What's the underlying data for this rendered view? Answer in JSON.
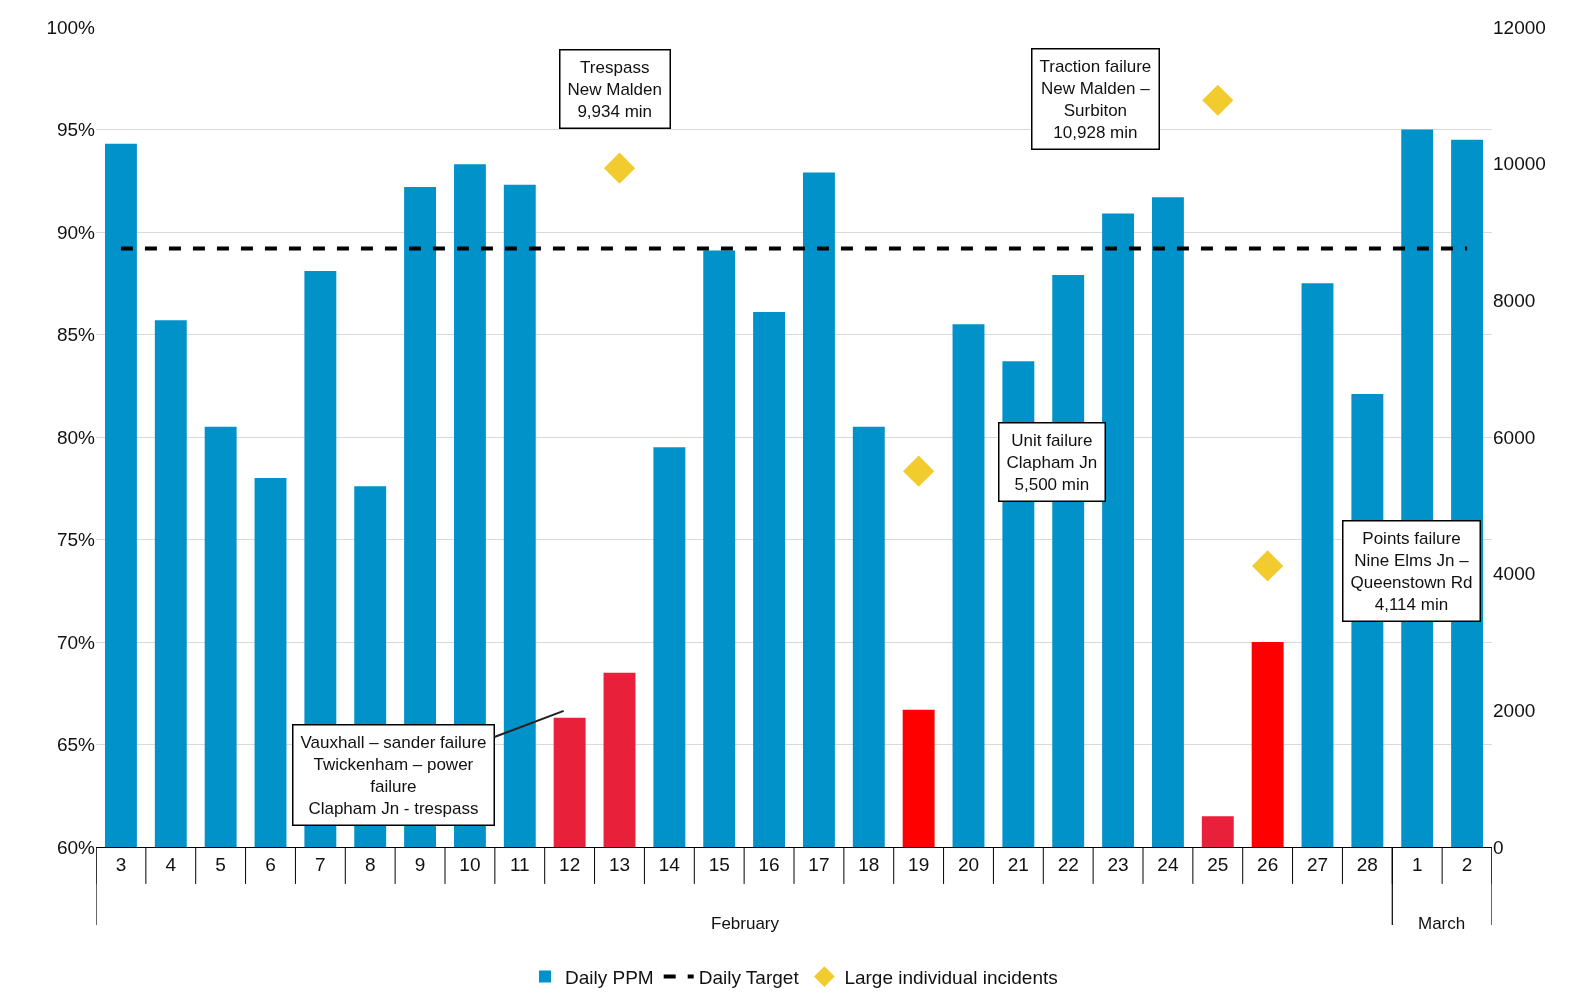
{
  "chart_data": {
    "type": "bar",
    "categories": [
      "3",
      "4",
      "5",
      "6",
      "7",
      "8",
      "9",
      "10",
      "11",
      "12",
      "13",
      "14",
      "15",
      "16",
      "17",
      "18",
      "19",
      "20",
      "21",
      "22",
      "23",
      "24",
      "25",
      "26",
      "27",
      "28",
      "1",
      "2"
    ],
    "series": [
      {
        "name": "Daily PPM",
        "colors": [
          "#0092c8",
          "#0092c8",
          "#0092c8",
          "#0092c8",
          "#0092c8",
          "#0092c8",
          "#0092c8",
          "#0092c8",
          "#0092c8",
          "#e8203a",
          "#e8203a",
          "#0092c8",
          "#0092c8",
          "#0092c8",
          "#0092c8",
          "#0092c8",
          "#ff0000",
          "#0092c8",
          "#0092c8",
          "#0092c8",
          "#0092c8",
          "#0092c8",
          "#e8203a",
          "#ff0000",
          "#0092c8",
          "#0092c8",
          "#0092c8",
          "#0092c8"
        ],
        "values": [
          94.3,
          85.7,
          80.5,
          78.0,
          88.1,
          77.6,
          92.2,
          93.3,
          92.3,
          66.3,
          68.5,
          79.5,
          89.1,
          86.1,
          92.9,
          80.5,
          66.7,
          85.5,
          83.7,
          87.9,
          90.9,
          91.7,
          61.5,
          70.0,
          87.5,
          82.1,
          95.0,
          94.5
        ]
      },
      {
        "name": "Daily Target",
        "type": "line",
        "color": "#000000",
        "line_style": "dashed",
        "marker": "none",
        "values": [
          89.2,
          89.2,
          89.2,
          89.2,
          89.2,
          89.2,
          89.2,
          89.2,
          89.2,
          89.2,
          89.2,
          89.2,
          89.2,
          89.2,
          89.2,
          89.2,
          89.2,
          89.2,
          89.2,
          89.2,
          89.2,
          89.2,
          89.2,
          89.2,
          89.2,
          89.2,
          89.2,
          89.2
        ]
      },
      {
        "name": "Large individual incidents",
        "type": "scatter",
        "axis": "y2",
        "marker": "diamond",
        "color": "#f2cc2e",
        "values": [
          null,
          null,
          null,
          null,
          null,
          null,
          null,
          null,
          null,
          null,
          9934,
          null,
          null,
          null,
          null,
          null,
          5500,
          null,
          null,
          null,
          null,
          null,
          10928,
          4114,
          null,
          null,
          null,
          null
        ]
      }
    ],
    "ylim": [
      60,
      100
    ],
    "yticks": [
      {
        "value": 60,
        "label": "60%"
      },
      {
        "value": 65,
        "label": "65%"
      },
      {
        "value": 70,
        "label": "70%"
      },
      {
        "value": 75,
        "label": "75%"
      },
      {
        "value": 80,
        "label": "80%"
      },
      {
        "value": 85,
        "label": "85%"
      },
      {
        "value": 90,
        "label": "90%"
      },
      {
        "value": 95,
        "label": "95%"
      },
      {
        "value": 100,
        "label": "100%"
      }
    ],
    "y2lim": [
      0,
      12000
    ],
    "y2ticks": [
      0,
      2000,
      4000,
      6000,
      8000,
      10000,
      12000
    ],
    "grid": "y",
    "legend": "bottom",
    "annotations": [
      "Trespass\nNew Malden\n9,934 min",
      "Traction failure\nNew Malden –\nSurbiton\n10,928 min",
      "Unit failure\nClapham Jn\n5,500 min",
      "Points failure\nNine Elms Jn –\nQueenstown Rd\n4,114 min",
      "Vauxhall – sander failure\nTwickenham – power\nfailure\nClapham Jn - trespass",
      "February",
      "March"
    ]
  }
}
